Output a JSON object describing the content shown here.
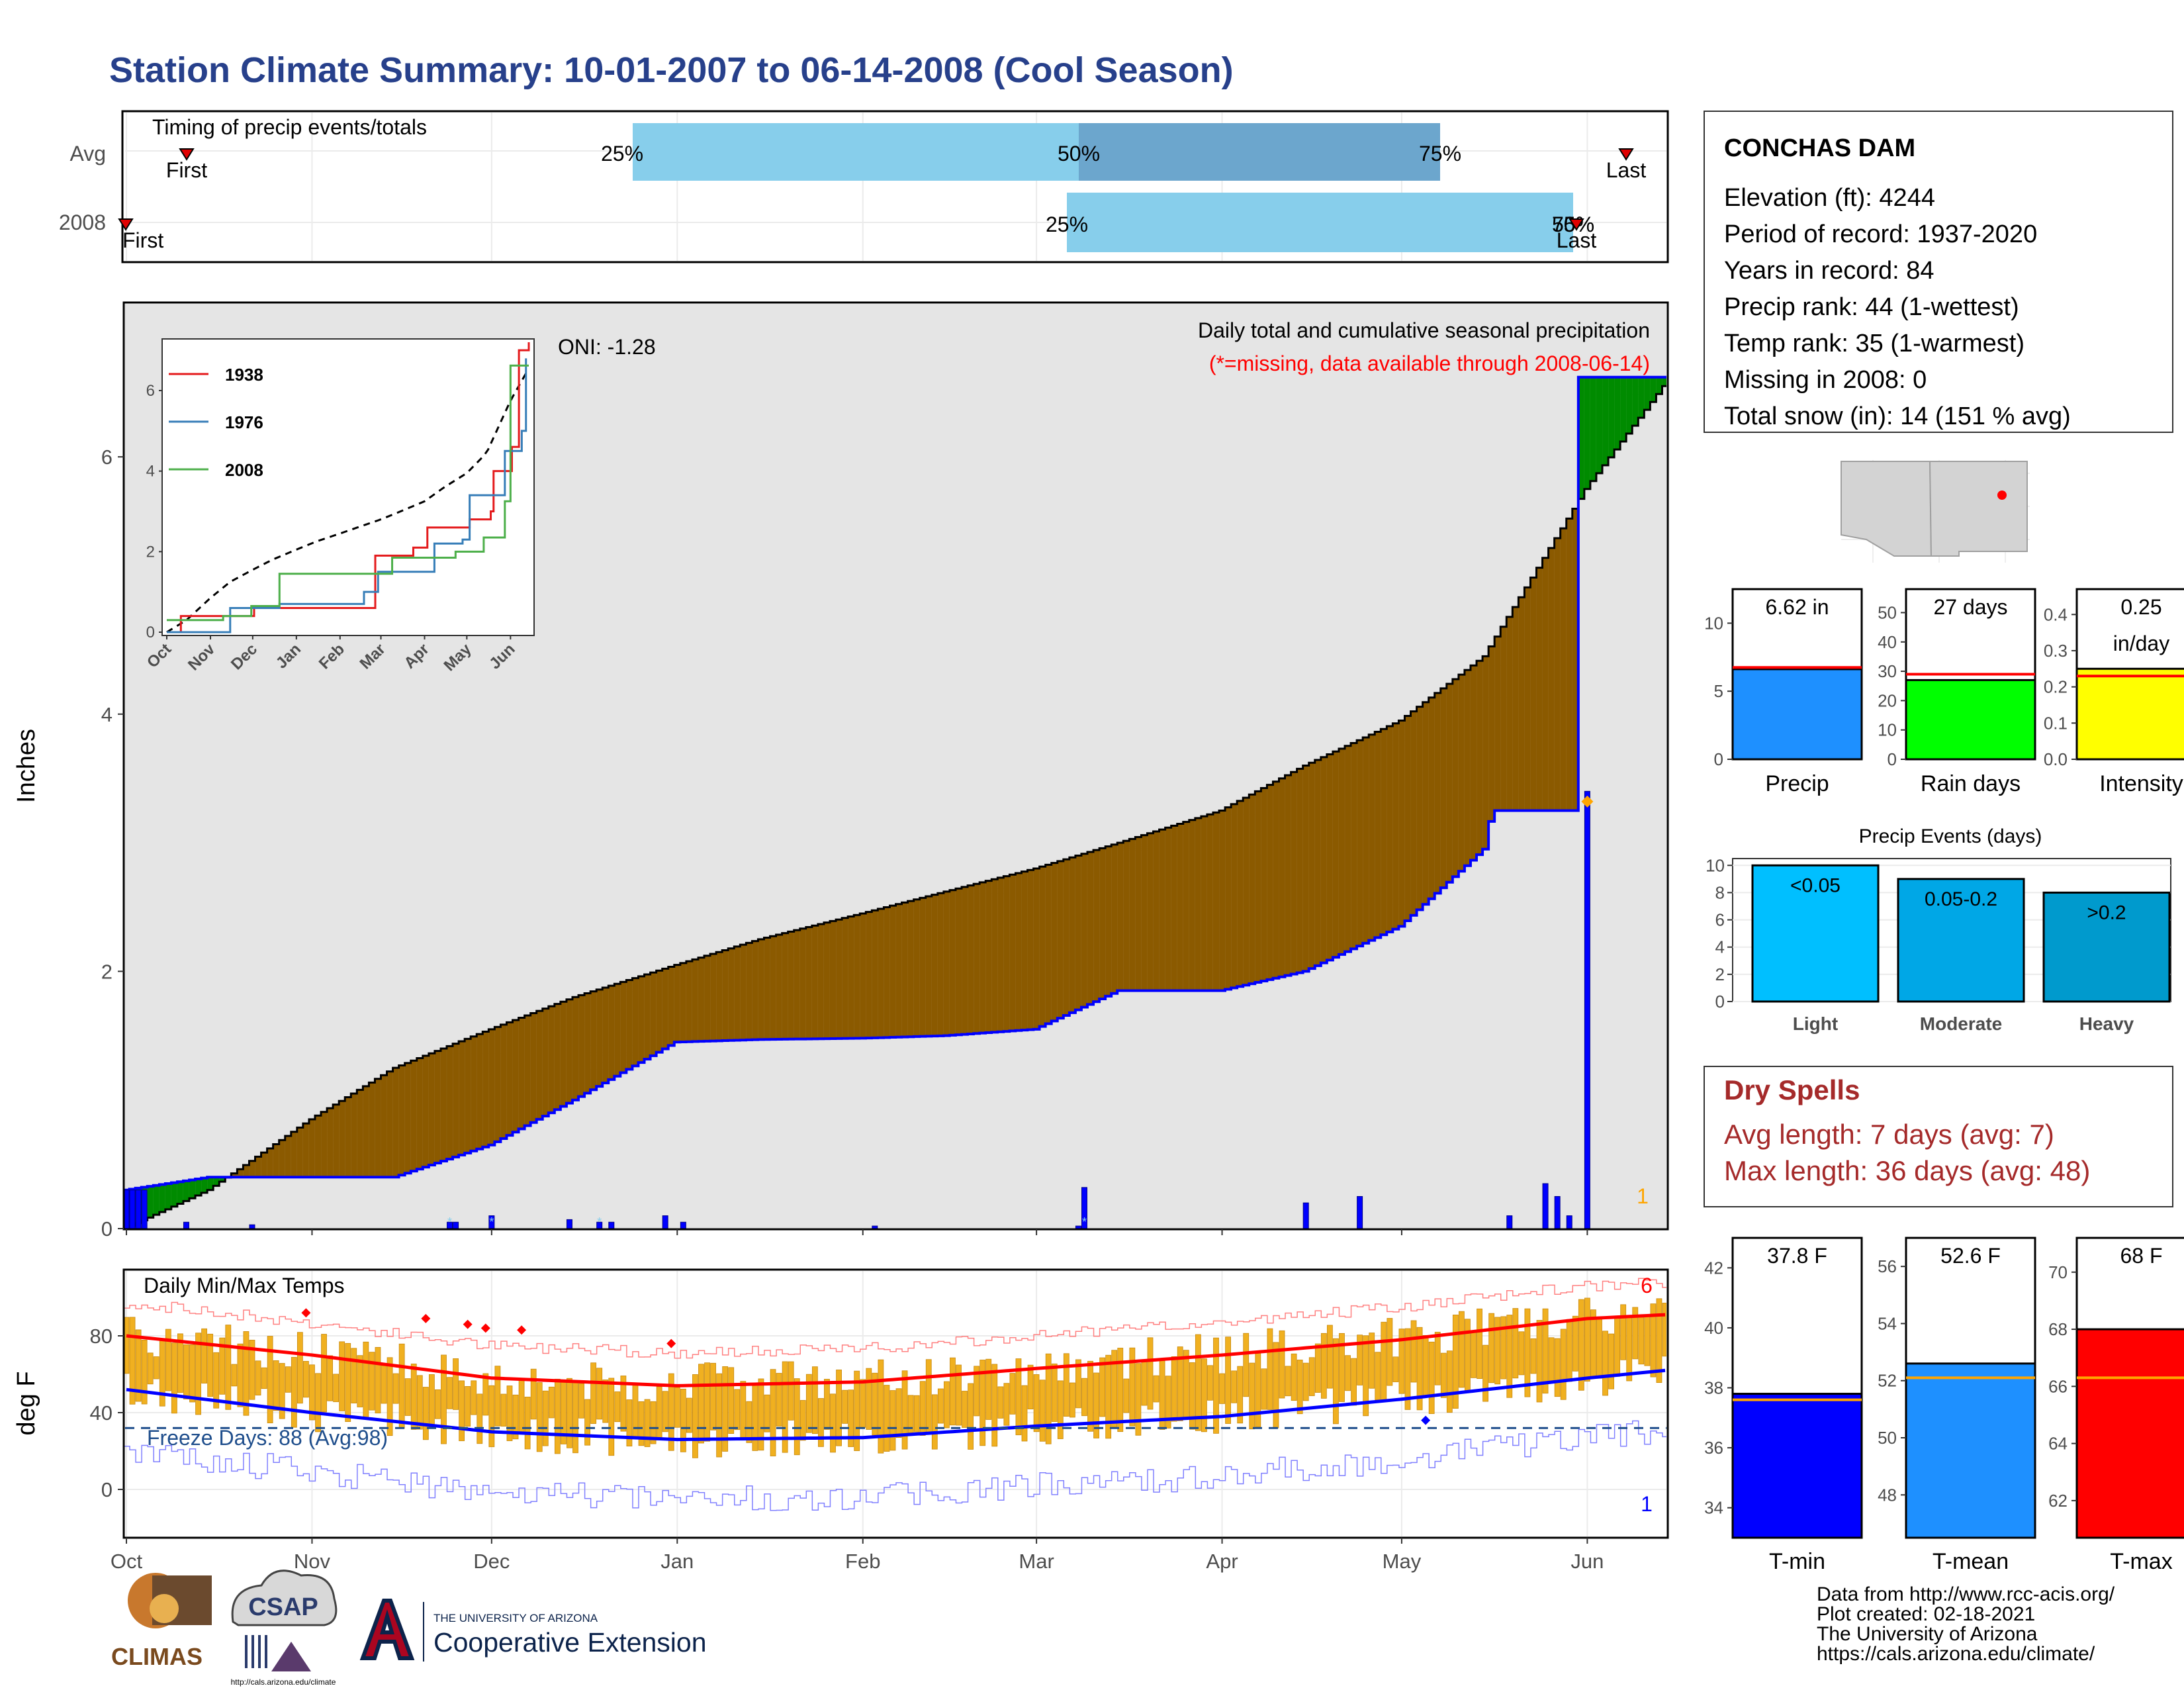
{
  "title": "Station Climate Summary: 10-01-2007 to 06-14-2008 (Cool Season)",
  "colors": {
    "title": "#27408b",
    "cum_avg_fill": "#8b5a00",
    "cum_green": "#008b00",
    "daily_bar": "#0000ff",
    "temp_bar": "#f0b020",
    "tmax_line": "#ff0000",
    "tmin_line": "#0000ff",
    "freeze_line": "#1f4e8c",
    "dry_spells": "#a52a2a"
  },
  "timing_panel": {
    "title": "Timing of precip events/totals",
    "rows": [
      "Avg",
      "2008"
    ],
    "avg": {
      "q25": "25%",
      "q50": "50%",
      "q75": "75%",
      "first": "First",
      "last": "Last"
    },
    "y2008": {
      "q25": "25%",
      "q50": "50%",
      "q75": "75%",
      "first": "First",
      "last": "Last"
    }
  },
  "precip_panel": {
    "ylabel": "Inches",
    "yticks": [
      "0",
      "2",
      "4",
      "6"
    ],
    "header": "Daily total and cumulative seasonal precipitation",
    "missing_note": "(*=missing, data available through 2008-06-14)",
    "oni": "ONI: -1.28",
    "corner_value": "1",
    "inset": {
      "legend": [
        "1938",
        "1976",
        "2008"
      ],
      "legend_colors": [
        "#e41a1c",
        "#377eb8",
        "#4daf4a"
      ],
      "yticks": [
        "0",
        "2",
        "4",
        "6"
      ],
      "xticks": [
        "Oct",
        "Nov",
        "Dec",
        "Jan",
        "Feb",
        "Mar",
        "Apr",
        "May",
        "Jun"
      ]
    }
  },
  "temp_panel": {
    "ylabel": "deg F",
    "yticks": [
      "0",
      "40",
      "80"
    ],
    "title": "Daily Min/Max Temps",
    "freeze_label": "Freeze Days: 88 (Avg:98)",
    "corner_top": "6",
    "corner_bottom": "1",
    "xticks": [
      "Oct",
      "Nov",
      "Dec",
      "Jan",
      "Feb",
      "Mar",
      "Apr",
      "May",
      "Jun"
    ]
  },
  "station": {
    "name": "CONCHAS DAM",
    "lines": [
      "Elevation (ft): 4244",
      "Period of record: 1937-2020",
      "Years in record: 84",
      "Precip rank: 44 (1-wettest)",
      "Temp rank: 35 (1-warmest)",
      "Missing in 2008: 0",
      "Total snow (in): 14 (151 % avg)"
    ]
  },
  "small_bars": [
    {
      "label": "Precip",
      "value_text": "6.62 in",
      "color": "#1e90ff",
      "yticks": [
        "0",
        "5",
        "10"
      ]
    },
    {
      "label": "Rain days",
      "value_text": "27 days",
      "color": "#00ff00",
      "yticks": [
        "0",
        "10",
        "20",
        "30",
        "40",
        "50"
      ]
    },
    {
      "label": "Intensity",
      "value_text": "0.25",
      "value_text2": "in/day",
      "color": "#ffff00",
      "yticks": [
        "0.0",
        "0.1",
        "0.2",
        "0.3",
        "0.4"
      ]
    }
  ],
  "events": {
    "title": "Precip Events (days)",
    "categories": [
      "Light",
      "Moderate",
      "Heavy"
    ],
    "labels": [
      "<0.05",
      "0.05-0.2",
      ">0.2"
    ],
    "colors": [
      "#00bfff",
      "#00a7e6",
      "#009acd"
    ],
    "yticks": [
      "0",
      "2",
      "4",
      "6",
      "8",
      "10"
    ]
  },
  "dry_spells": {
    "title": "Dry Spells",
    "avg": "Avg length: 7 days (avg: 7)",
    "max": "Max length: 36 days (avg: 48)"
  },
  "temp_bars": [
    {
      "label": "T-min",
      "value_text": "37.8 F",
      "color": "#0000ff",
      "yticks": [
        "34",
        "36",
        "38",
        "40",
        "42"
      ]
    },
    {
      "label": "T-mean",
      "value_text": "52.6 F",
      "color": "#1e90ff",
      "yticks": [
        "48",
        "50",
        "52",
        "54",
        "56"
      ]
    },
    {
      "label": "T-max",
      "value_text": "68 F",
      "color": "#ff0000",
      "yticks": [
        "62",
        "64",
        "66",
        "68",
        "70"
      ]
    }
  ],
  "footer": {
    "lines": [
      "Data from http://www.rcc-acis.org/",
      "Plot created: 02-18-2021",
      "The University of Arizona",
      "https://cals.arizona.edu/climate/"
    ],
    "logo_climas": "CLIMAS",
    "logo_csap": "CSAP",
    "logo_csap_url": "http://cals.arizona.edu/climate",
    "ua_small": "THE UNIVERSITY OF ARIZONA",
    "ua_big": "Cooperative Extension"
  },
  "chart_data": [
    {
      "type": "bar",
      "title": "Timing of precip events/totals",
      "categories": [
        "Avg",
        "2008"
      ],
      "series": [
        {
          "name": "Avg",
          "q25": "12-26",
          "q50": "03-01",
          "q75": "04-24",
          "first": "10-21",
          "last": "06-08"
        },
        {
          "name": "2008",
          "q25": "03-01",
          "q50": "05-31",
          "q75": "05-31",
          "first": "10-01",
          "last": "05-31"
        }
      ]
    },
    {
      "type": "area",
      "title": "Daily total and cumulative seasonal precipitation",
      "ylabel": "Inches",
      "ylim": [
        0,
        7.2
      ],
      "x": [
        "10-01",
        "10-15",
        "11-01",
        "11-15",
        "12-01",
        "12-15",
        "01-01",
        "01-15",
        "02-01",
        "02-15",
        "03-01",
        "03-15",
        "04-01",
        "04-15",
        "05-01",
        "05-15",
        "06-01",
        "06-14"
      ],
      "series": [
        {
          "name": "avg cumulative",
          "values": [
            0.0,
            0.3,
            0.85,
            1.25,
            1.55,
            1.8,
            2.05,
            2.25,
            2.45,
            2.62,
            2.8,
            3.0,
            3.25,
            3.6,
            3.95,
            4.45,
            5.75,
            6.55
          ]
        },
        {
          "name": "2008 cumulative",
          "values": [
            0.3,
            0.4,
            0.4,
            0.4,
            0.65,
            1.0,
            1.45,
            1.47,
            1.48,
            1.5,
            1.55,
            1.85,
            1.85,
            2.0,
            2.35,
            2.95,
            6.62,
            6.62
          ]
        }
      ]
    },
    {
      "type": "line",
      "title": "Daily Min/Max Temps",
      "ylabel": "deg F",
      "x": [
        "10-01",
        "11-01",
        "12-01",
        "01-01",
        "02-01",
        "03-01",
        "04-01",
        "05-01",
        "06-01",
        "06-14"
      ],
      "series": [
        {
          "name": "normal max",
          "values": [
            80,
            70,
            58,
            54,
            56,
            63,
            70,
            78,
            89,
            91
          ]
        },
        {
          "name": "normal min",
          "values": [
            52,
            40,
            30,
            26,
            27,
            33,
            38,
            47,
            58,
            62
          ]
        }
      ]
    },
    {
      "type": "bar",
      "categories": [
        "Precip",
        "Rain days",
        "Intensity"
      ],
      "values": [
        6.62,
        27,
        0.25
      ]
    },
    {
      "type": "bar",
      "title": "Precip Events (days)",
      "categories": [
        "Light",
        "Moderate",
        "Heavy"
      ],
      "values": [
        10,
        9,
        8
      ]
    },
    {
      "type": "bar",
      "categories": [
        "T-min",
        "T-mean",
        "T-max"
      ],
      "values": [
        37.8,
        52.6,
        68
      ]
    }
  ]
}
